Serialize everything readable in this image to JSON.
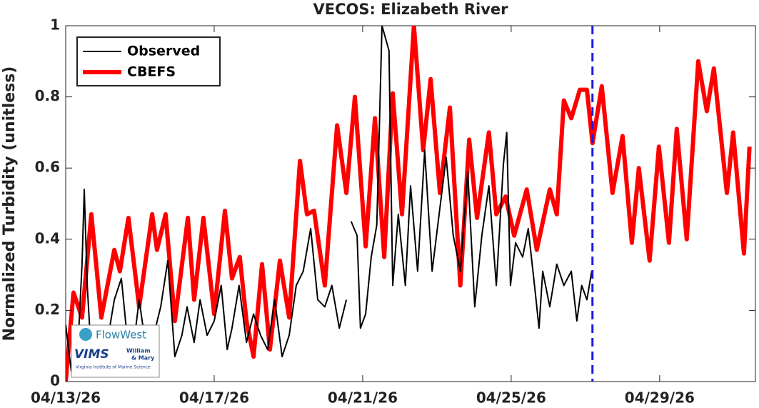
{
  "chart_data": {
    "type": "line",
    "title": "VECOS: Elizabeth River",
    "ylabel": "Normalized Turbidity (unitless)",
    "xlim": [
      0,
      18.58
    ],
    "xticks": [
      {
        "value": 0,
        "label": "04/13/26"
      },
      {
        "value": 4,
        "label": "04/17/26"
      },
      {
        "value": 8,
        "label": "04/21/26"
      },
      {
        "value": 12,
        "label": "04/25/26"
      },
      {
        "value": 16,
        "label": "04/29/26"
      }
    ],
    "ylim": [
      0,
      1
    ],
    "yticks": [
      0,
      0.2,
      0.4,
      0.6,
      0.8,
      1
    ],
    "grid": false,
    "legend": "upper left",
    "forecast_line": {
      "x": 14.19,
      "color": "#1a1ae6"
    },
    "series": [
      {
        "name": "Observed",
        "color": "#000000",
        "x": [
          0,
          0.15,
          0.35,
          0.44,
          0.5,
          0.58,
          0.69,
          0.83,
          1.02,
          1.12,
          1.31,
          1.5,
          1.65,
          1.79,
          1.98,
          2.17,
          2.37,
          2.56,
          2.75,
          2.94,
          3.13,
          3.27,
          3.46,
          3.62,
          3.81,
          4.0,
          4.19,
          4.35,
          4.48,
          4.67,
          4.87,
          5.06,
          5.25,
          5.44,
          5.63,
          5.83,
          6.02,
          6.21,
          6.4,
          6.6,
          6.79,
          6.98,
          7.17,
          7.37,
          7.56,
          7.65,
          7.69,
          7.85,
          7.94,
          8.08,
          8.23,
          8.38,
          8.52,
          8.71,
          8.81,
          8.96,
          9.15,
          9.29,
          9.48,
          9.67,
          9.87,
          10.06,
          10.25,
          10.44,
          10.63,
          10.83,
          11.02,
          11.21,
          11.4,
          11.6,
          11.79,
          11.88,
          11.98,
          12.12,
          12.31,
          12.46,
          12.65,
          12.75,
          12.85,
          13.04,
          13.23,
          13.42,
          13.62,
          13.77,
          13.9,
          14.04,
          14.17
        ],
        "values": [
          0.16,
          0.03,
          0.14,
          0.33,
          0.54,
          0.27,
          0.07,
          0.09,
          0.03,
          0.11,
          0.23,
          0.29,
          0.13,
          0.07,
          0.23,
          0.09,
          0.13,
          0.21,
          0.34,
          0.07,
          0.13,
          0.21,
          0.11,
          0.23,
          0.13,
          0.17,
          0.27,
          0.09,
          0.15,
          0.27,
          0.11,
          0.19,
          0.13,
          0.09,
          0.23,
          0.07,
          0.13,
          0.27,
          0.31,
          0.43,
          0.23,
          0.21,
          0.27,
          0.15,
          0.23,
          null,
          0.45,
          0.41,
          0.15,
          0.19,
          0.35,
          0.44,
          1.0,
          0.93,
          0.27,
          0.47,
          0.27,
          0.55,
          0.31,
          0.65,
          0.31,
          0.47,
          0.63,
          0.41,
          0.31,
          0.59,
          0.21,
          0.41,
          0.55,
          0.27,
          0.61,
          0.7,
          0.27,
          0.39,
          0.35,
          0.43,
          0.25,
          0.15,
          0.31,
          0.21,
          0.33,
          0.27,
          0.31,
          0.17,
          0.27,
          0.23,
          0.31
        ]
      },
      {
        "name": "CBEFS",
        "color": "#ff0000",
        "x": [
          0,
          0.21,
          0.44,
          0.69,
          0.96,
          1.31,
          1.46,
          1.69,
          1.98,
          2.33,
          2.46,
          2.69,
          2.94,
          3.29,
          3.46,
          3.71,
          4.0,
          4.29,
          4.48,
          4.69,
          4.87,
          5.06,
          5.29,
          5.5,
          5.77,
          6.02,
          6.31,
          6.5,
          6.69,
          6.98,
          7.31,
          7.56,
          7.79,
          8.08,
          8.33,
          8.58,
          8.81,
          9.06,
          9.38,
          9.63,
          9.83,
          10.08,
          10.35,
          10.63,
          10.87,
          11.08,
          11.4,
          11.6,
          11.85,
          12.08,
          12.42,
          12.69,
          13.04,
          13.23,
          13.42,
          13.62,
          13.85,
          14.04,
          14.19,
          14.44,
          14.73,
          15.0,
          15.25,
          15.44,
          15.73,
          15.98,
          16.25,
          16.46,
          16.73,
          17.04,
          17.27,
          17.46,
          17.81,
          17.98,
          18.27,
          18.42
        ],
        "values": [
          0,
          0.25,
          0.18,
          0.47,
          0.18,
          0.37,
          0.31,
          0.46,
          0.21,
          0.47,
          0.37,
          0.47,
          0.17,
          0.46,
          0.23,
          0.46,
          0.19,
          0.48,
          0.29,
          0.35,
          0.17,
          0.07,
          0.33,
          0.09,
          0.34,
          0.18,
          0.62,
          0.47,
          0.48,
          0.27,
          0.72,
          0.53,
          0.8,
          0.38,
          0.74,
          0.35,
          0.81,
          0.47,
          1.0,
          0.65,
          0.85,
          0.53,
          0.77,
          0.27,
          0.68,
          0.46,
          0.7,
          0.47,
          0.52,
          0.41,
          0.54,
          0.37,
          0.54,
          0.47,
          0.79,
          0.74,
          0.82,
          0.82,
          0.67,
          0.83,
          0.53,
          0.69,
          0.39,
          0.6,
          0.34,
          0.66,
          0.39,
          0.71,
          0.4,
          0.9,
          0.76,
          0.88,
          0.53,
          0.7,
          0.36,
          0.66
        ]
      }
    ]
  },
  "logo": {
    "brand": "FlowWest",
    "vims": "VIMS",
    "school1": "William",
    "school2": "& Mary",
    "institute": "Virginia Institute of Marine Science"
  }
}
